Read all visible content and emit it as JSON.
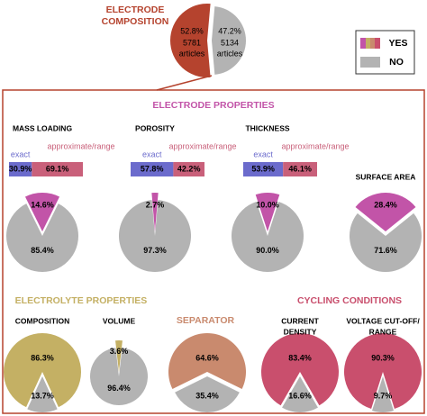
{
  "header": {
    "title": [
      "ELECTRODE",
      "COMPOSITION"
    ]
  },
  "legend": {
    "labels": [
      "YES",
      "NO"
    ]
  },
  "sections": {
    "electrode_properties": "ELECTRODE PROPERTIES",
    "electrolyte_properties": "ELECTROLYTE PROPERTIES",
    "separator": "SEPARATOR",
    "cycling_conditions": "CYCLING CONDITIONS"
  },
  "chart_data": [
    {
      "type": "pie",
      "values": [
        52.8,
        47.2
      ],
      "value_labels": [
        "52.8%",
        "47.2%"
      ],
      "annotations": [
        [
          "5781",
          "articles"
        ],
        [
          "5134",
          "articles"
        ]
      ],
      "colors": [
        "#b5432e",
        "#b3b3b3"
      ]
    },
    {
      "type": "pie",
      "title": "MASS LOADING",
      "values": [
        14.6,
        85.4
      ],
      "value_labels": [
        "14.6%",
        "85.4%"
      ],
      "colors": [
        "#c254a8",
        "#b3b3b3"
      ],
      "bar": {
        "categories": [
          "exact",
          "approximate/range"
        ],
        "values": [
          30.9,
          69.1
        ],
        "value_labels": [
          "30.9%",
          "69.1%"
        ],
        "colors": [
          "#6b6bcc",
          "#c9607a"
        ]
      }
    },
    {
      "type": "pie",
      "title": "POROSITY",
      "values": [
        2.7,
        97.3
      ],
      "value_labels": [
        "2.7%",
        "97.3%"
      ],
      "colors": [
        "#c254a8",
        "#b3b3b3"
      ],
      "bar": {
        "categories": [
          "exact",
          "approximate/range"
        ],
        "values": [
          57.8,
          42.2
        ],
        "value_labels": [
          "57.8%",
          "42.2%"
        ],
        "colors": [
          "#6b6bcc",
          "#c9607a"
        ]
      }
    },
    {
      "type": "pie",
      "title": "THICKNESS",
      "values": [
        10.0,
        90.0
      ],
      "value_labels": [
        "10.0%",
        "90.0%"
      ],
      "colors": [
        "#c254a8",
        "#b3b3b3"
      ],
      "bar": {
        "categories": [
          "exact",
          "approximate/range"
        ],
        "values": [
          53.9,
          46.1
        ],
        "value_labels": [
          "53.9%",
          "46.1%"
        ],
        "colors": [
          "#6b6bcc",
          "#c9607a"
        ]
      }
    },
    {
      "type": "pie",
      "title": "SURFACE AREA",
      "values": [
        28.4,
        71.6
      ],
      "value_labels": [
        "28.4%",
        "71.6%"
      ],
      "colors": [
        "#c254a8",
        "#b3b3b3"
      ]
    },
    {
      "type": "pie",
      "title": "COMPOSITION",
      "values": [
        86.3,
        13.7
      ],
      "value_labels": [
        "86.3%",
        "13.7%"
      ],
      "colors": [
        "#c4b064",
        "#b3b3b3"
      ]
    },
    {
      "type": "pie",
      "title": "VOLUME",
      "values": [
        3.6,
        96.4
      ],
      "value_labels": [
        "3.6%",
        "96.4%"
      ],
      "colors": [
        "#c4b064",
        "#b3b3b3"
      ]
    },
    {
      "type": "pie",
      "values": [
        64.6,
        35.4
      ],
      "value_labels": [
        "64.6%",
        "35.4%"
      ],
      "colors": [
        "#c98a6e",
        "#b3b3b3"
      ]
    },
    {
      "type": "pie",
      "title": [
        "CURRENT",
        "DENSITY"
      ],
      "values": [
        83.4,
        16.6
      ],
      "value_labels": [
        "83.4%",
        "16.6%"
      ],
      "colors": [
        "#c94f6d",
        "#b3b3b3"
      ]
    },
    {
      "type": "pie",
      "title": [
        "VOLTAGE CUT-OFF/",
        "RANGE"
      ],
      "values": [
        90.3,
        9.7
      ],
      "value_labels": [
        "90.3%",
        "9.7%"
      ],
      "colors": [
        "#c94f6d",
        "#b3b3b3"
      ]
    }
  ]
}
